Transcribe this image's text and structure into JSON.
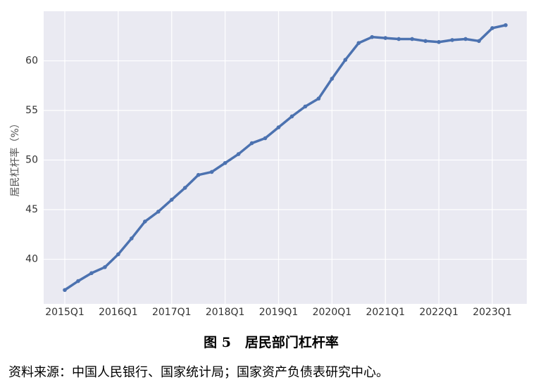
{
  "chart_data": {
    "type": "line",
    "title": "图 5   居民部门杠杆率",
    "source": "资料来源：中国人民银行、国家统计局；国家资产负债表研究中心。",
    "ylabel": "居民杠杆率（%）",
    "categories": [
      "2015Q1",
      null,
      null,
      null,
      "2016Q1",
      null,
      null,
      null,
      "2017Q1",
      null,
      null,
      null,
      "2018Q1",
      null,
      null,
      null,
      "2019Q1",
      null,
      null,
      null,
      "2020Q1",
      null,
      null,
      null,
      "2021Q1",
      null,
      null,
      null,
      "2022Q1",
      null,
      null,
      null,
      "2023Q1",
      null
    ],
    "values": [
      36.9,
      37.8,
      38.6,
      39.2,
      40.5,
      42.1,
      43.8,
      44.8,
      46.0,
      47.2,
      48.5,
      48.8,
      49.7,
      50.6,
      51.7,
      52.2,
      53.3,
      54.4,
      55.4,
      56.2,
      58.2,
      60.1,
      61.8,
      62.4,
      62.3,
      62.2,
      62.2,
      62.0,
      61.9,
      62.1,
      62.2,
      62.0,
      63.3,
      63.6
    ],
    "color": "#4c72b0",
    "ylim": [
      35.5,
      65
    ],
    "yticks": [
      40,
      45,
      50,
      55,
      60
    ],
    "grid": true
  }
}
